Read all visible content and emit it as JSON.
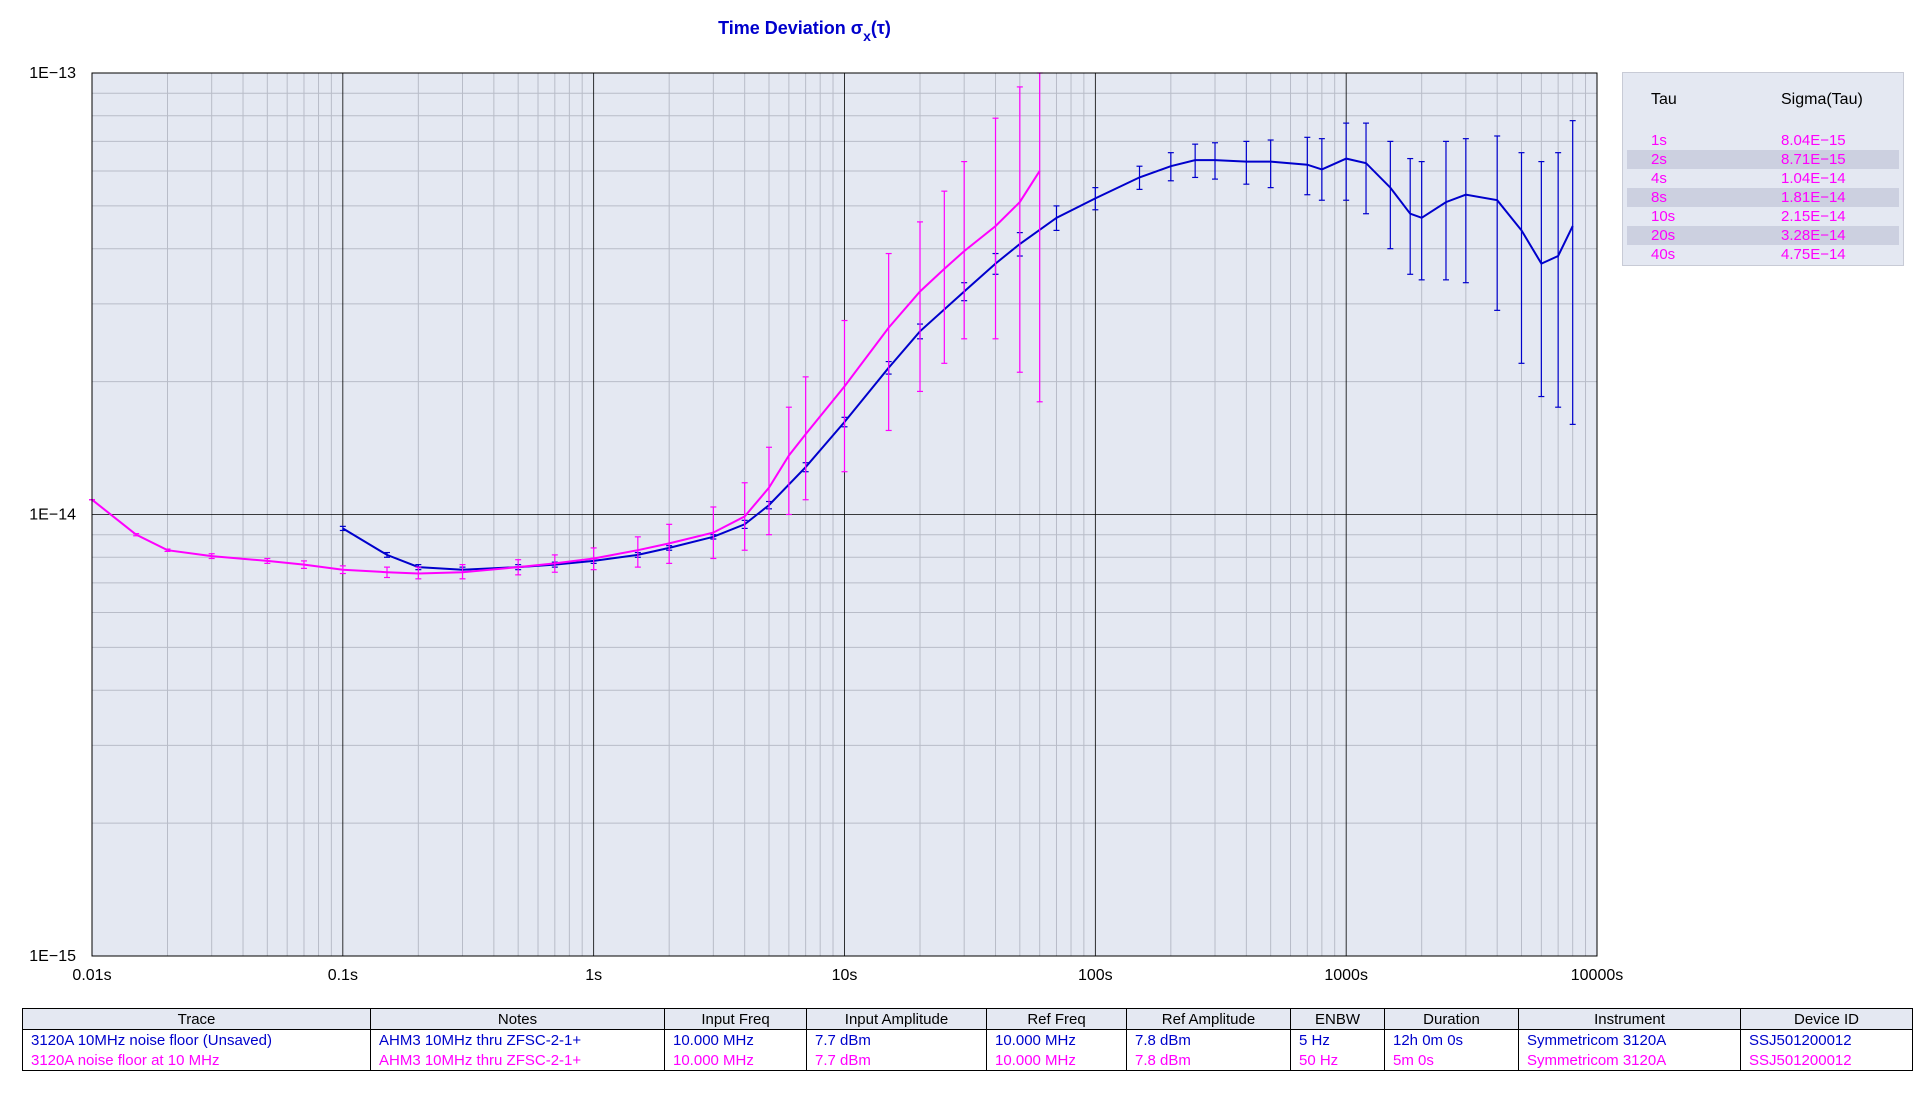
{
  "chart_data": {
    "type": "line",
    "title": "Time Deviation σx(τ)",
    "title_main": "Time Deviation σ",
    "title_sub": "x",
    "title_tail": "(τ)",
    "x_scale": "log",
    "y_scale": "log",
    "xlim": [
      0.01,
      10000
    ],
    "ylim": [
      1e-15,
      1e-13
    ],
    "x_ticks": [
      "0.01s",
      "0.1s",
      "1s",
      "10s",
      "100s",
      "1000s",
      "10000s"
    ],
    "y_ticks": [
      "1E−13",
      "1E−14",
      "1E−15"
    ],
    "grid": true,
    "series": [
      {
        "name": "3120A 10MHz noise floor (Unsaved)",
        "color": "#0000cc",
        "x": [
          0.1,
          0.15,
          0.2,
          0.3,
          0.5,
          0.7,
          1,
          1.5,
          2,
          3,
          4,
          5,
          7,
          10,
          15,
          20,
          30,
          40,
          50,
          70,
          100,
          150,
          200,
          250,
          300,
          400,
          500,
          700,
          800,
          1000,
          1200,
          1500,
          1800,
          2000,
          2500,
          3000,
          4000,
          5000,
          6000,
          7000,
          8000
        ],
        "y": [
          9.3e-15,
          8.1e-15,
          7.6e-15,
          7.5e-15,
          7.6e-15,
          7.7e-15,
          7.85e-15,
          8.1e-15,
          8.4e-15,
          8.9e-15,
          9.5e-15,
          1.05e-14,
          1.28e-14,
          1.62e-14,
          2.15e-14,
          2.6e-14,
          3.2e-14,
          3.7e-14,
          4.1e-14,
          4.7e-14,
          5.2e-14,
          5.8e-14,
          6.15e-14,
          6.35e-14,
          6.35e-14,
          6.3e-14,
          6.3e-14,
          6.2e-14,
          6.05e-14,
          6.4e-14,
          6.25e-14,
          5.5e-14,
          4.8e-14,
          4.7e-14,
          5.1e-14,
          5.3e-14,
          5.15e-14,
          4.4e-14,
          3.7e-14,
          3.85e-14,
          4.5e-14
        ],
        "err_lo": [
          9.2e-15,
          8e-15,
          7.5e-15,
          7.4e-15,
          7.5e-15,
          7.6e-15,
          7.75e-15,
          8e-15,
          8.3e-15,
          8.8e-15,
          9.3e-15,
          1.03e-14,
          1.25e-14,
          1.58e-14,
          2.08e-14,
          2.5e-14,
          3.05e-14,
          3.5e-14,
          3.85e-14,
          4.4e-14,
          4.9e-14,
          5.45e-14,
          5.7e-14,
          5.8e-14,
          5.75e-14,
          5.6e-14,
          5.5e-14,
          5.3e-14,
          5.15e-14,
          5.15e-14,
          4.8e-14,
          4e-14,
          3.5e-14,
          3.4e-14,
          3.4e-14,
          3.35e-14,
          2.9e-14,
          2.2e-14,
          1.85e-14,
          1.75e-14,
          1.6e-14
        ],
        "err_hi": [
          9.4e-15,
          8.2e-15,
          7.7e-15,
          7.6e-15,
          7.7e-15,
          7.8e-15,
          7.95e-15,
          8.2e-15,
          8.5e-15,
          9e-15,
          9.7e-15,
          1.07e-14,
          1.31e-14,
          1.66e-14,
          2.22e-14,
          2.7e-14,
          3.35e-14,
          3.9e-14,
          4.35e-14,
          5e-14,
          5.5e-14,
          6.15e-14,
          6.6e-14,
          6.9e-14,
          6.95e-14,
          7e-14,
          7.05e-14,
          7.15e-14,
          7.1e-14,
          7.7e-14,
          7.7e-14,
          7e-14,
          6.4e-14,
          6.3e-14,
          7e-14,
          7.1e-14,
          7.2e-14,
          6.6e-14,
          6.3e-14,
          6.6e-14,
          7.8e-14
        ]
      },
      {
        "name": "3120A noise floor at 10 MHz",
        "color": "#ff00ff",
        "x": [
          0.01,
          0.015,
          0.02,
          0.03,
          0.05,
          0.07,
          0.1,
          0.15,
          0.2,
          0.3,
          0.5,
          0.7,
          1,
          1.5,
          2,
          3,
          4,
          5,
          6,
          7,
          10,
          15,
          20,
          25,
          30,
          40,
          50,
          60
        ],
        "y": [
          1.08e-14,
          9e-15,
          8.3e-15,
          8.05e-15,
          7.85e-15,
          7.7e-15,
          7.5e-15,
          7.4e-15,
          7.35e-15,
          7.4e-15,
          7.6e-15,
          7.75e-15,
          7.95e-15,
          8.3e-15,
          8.6e-15,
          9.1e-15,
          9.9e-15,
          1.15e-14,
          1.36e-14,
          1.52e-14,
          1.95e-14,
          2.65e-14,
          3.2e-14,
          3.6e-14,
          3.95e-14,
          4.5e-14,
          5.1e-14,
          6e-14
        ],
        "err_lo": [
          1.08e-14,
          8.95e-15,
          8.25e-15,
          7.95e-15,
          7.75e-15,
          7.55e-15,
          7.35e-15,
          7.2e-15,
          7.15e-15,
          7.15e-15,
          7.3e-15,
          7.4e-15,
          7.5e-15,
          7.6e-15,
          7.75e-15,
          7.95e-15,
          8.3e-15,
          9e-15,
          1e-14,
          1.08e-14,
          1.25e-14,
          1.55e-14,
          1.9e-14,
          2.2e-14,
          2.5e-14,
          2.5e-14,
          2.1e-14,
          1.8e-14
        ],
        "err_hi": [
          1.08e-14,
          9.05e-15,
          8.35e-15,
          8.15e-15,
          7.95e-15,
          7.85e-15,
          7.65e-15,
          7.6e-15,
          7.6e-15,
          7.7e-15,
          7.9e-15,
          8.1e-15,
          8.4e-15,
          8.9e-15,
          9.5e-15,
          1.04e-14,
          1.18e-14,
          1.42e-14,
          1.75e-14,
          2.05e-14,
          2.75e-14,
          3.9e-14,
          4.6e-14,
          5.4e-14,
          6.3e-14,
          7.9e-14,
          9.3e-14,
          1e-13
        ]
      }
    ],
    "tau_table": {
      "headers": [
        "Tau",
        "Sigma(Tau)"
      ],
      "rows": [
        [
          "1s",
          "8.04E−15"
        ],
        [
          "2s",
          "8.71E−15"
        ],
        [
          "4s",
          "1.04E−14"
        ],
        [
          "8s",
          "1.81E−14"
        ],
        [
          "10s",
          "2.15E−14"
        ],
        [
          "20s",
          "3.28E−14"
        ],
        [
          "40s",
          "4.75E−14"
        ]
      ]
    }
  },
  "info_table": {
    "headers": [
      "Trace",
      "Notes",
      "Input Freq",
      "Input Amplitude",
      "Ref Freq",
      "Ref Amplitude",
      "ENBW",
      "Duration",
      "Instrument",
      "Device ID"
    ],
    "rows": [
      [
        "3120A 10MHz noise floor (Unsaved)",
        "AHM3 10MHz thru ZFSC-2-1+",
        "10.000 MHz",
        "7.7 dBm",
        "10.000 MHz",
        "7.8 dBm",
        "5 Hz",
        "12h 0m 0s",
        "Symmetricom 3120A",
        "SSJ501200012"
      ],
      [
        "3120A noise floor at 10 MHz",
        "AHM3 10MHz thru ZFSC-2-1+",
        "10.000 MHz",
        "7.7 dBm",
        "10.000 MHz",
        "7.8 dBm",
        "50 Hz",
        "5m 0s",
        "Symmetricom 3120A",
        "SSJ501200012"
      ]
    ]
  },
  "colors": {
    "plot_background": "#e4e8f2",
    "major_grid": "#000000",
    "minor_grid": "#b8bcc8",
    "blue_trace": "#0000cc",
    "magenta_trace": "#ff00ff"
  }
}
